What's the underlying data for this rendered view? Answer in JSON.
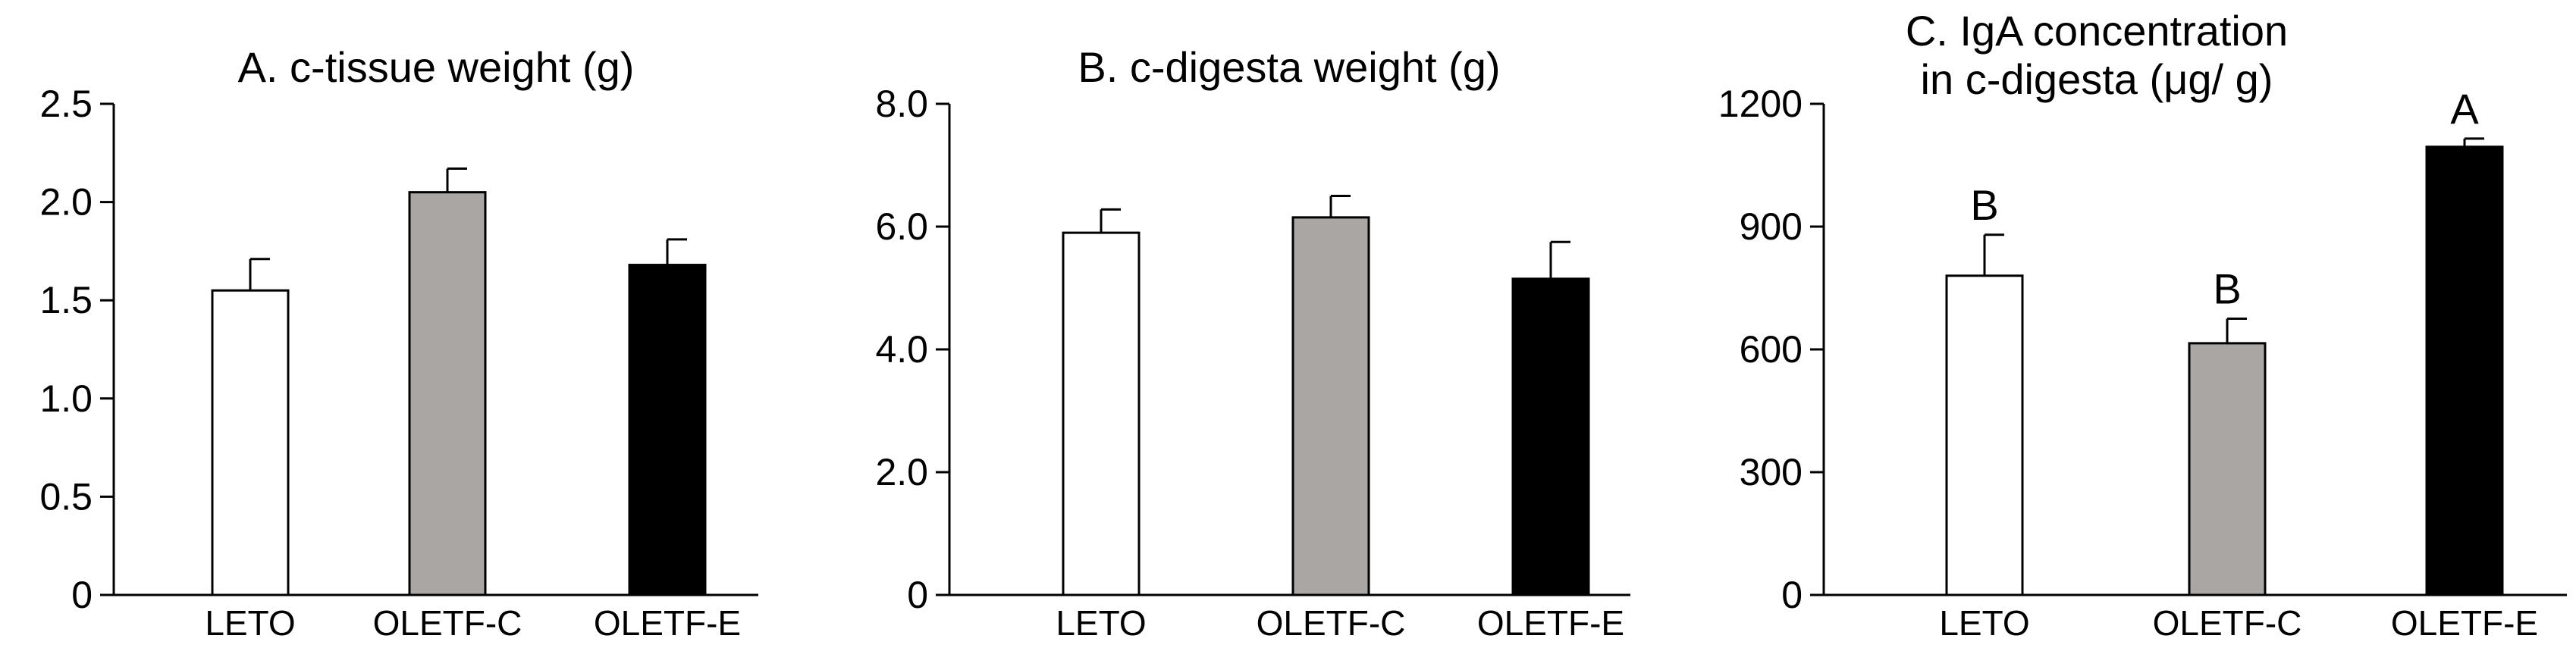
{
  "colors": {
    "LETO": "#ffffff",
    "OLETF-C": "#aaa6a4",
    "OLETF-E": "#000000",
    "axis": "#000000"
  },
  "chart_data": [
    {
      "type": "bar",
      "title": "A. c-tissue weight (g)",
      "title_lines": [
        "A. c-tissue weight (g)"
      ],
      "categories": [
        "LETO",
        "OLETF-C",
        "OLETF-E"
      ],
      "values": [
        1.55,
        2.05,
        1.68
      ],
      "errors": [
        0.16,
        0.12,
        0.13
      ],
      "significance": [],
      "ylim": [
        0,
        2.5
      ],
      "yticks": [
        0,
        0.5,
        1.0,
        1.5,
        2.0,
        2.5
      ],
      "ytick_labels": [
        "0",
        "0.5",
        "1.0",
        "1.5",
        "2.0",
        "2.5"
      ],
      "xlabel": "",
      "ylabel": "",
      "grid": false
    },
    {
      "type": "bar",
      "title": "B. c-digesta weight (g)",
      "title_lines": [
        "B. c-digesta weight (g)"
      ],
      "categories": [
        "LETO",
        "OLETF-C",
        "OLETF-E"
      ],
      "values": [
        5.9,
        6.15,
        5.15
      ],
      "errors": [
        0.38,
        0.35,
        0.6
      ],
      "significance": [],
      "ylim": [
        0,
        8.0
      ],
      "yticks": [
        0,
        2.0,
        4.0,
        6.0,
        8.0
      ],
      "ytick_labels": [
        "0",
        "2.0",
        "4.0",
        "6.0",
        "8.0"
      ],
      "xlabel": "",
      "ylabel": "",
      "grid": false
    },
    {
      "type": "bar",
      "title": "C. IgA concentration in c-digesta (μg/ g)",
      "title_lines": [
        "C. IgA concentration",
        "in c-digesta (μg/ g)"
      ],
      "categories": [
        "LETO",
        "OLETF-C",
        "OLETF-E"
      ],
      "values": [
        780,
        615,
        1095
      ],
      "errors": [
        100,
        60,
        20
      ],
      "significance": [
        "B",
        "B",
        "A"
      ],
      "ylim": [
        0,
        1200
      ],
      "yticks": [
        0,
        300,
        600,
        900,
        1200
      ],
      "ytick_labels": [
        "0",
        "300",
        "600",
        "900",
        "1200"
      ],
      "xlabel": "",
      "ylabel": "",
      "grid": false
    }
  ]
}
